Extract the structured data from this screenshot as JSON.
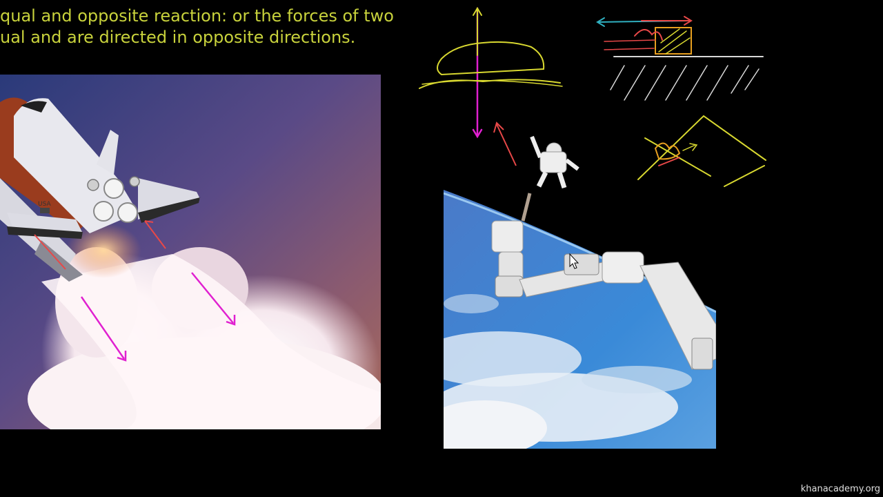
{
  "caption": {
    "line1": "qual and opposite reaction: or the forces of two",
    "line2": "ual and are directed in opposite directions."
  },
  "shuttle_photo": {
    "decal": "USA"
  },
  "watermark": "khanacademy.org",
  "colors": {
    "caption": "#c8d23c",
    "magenta": "#e020d0",
    "red": "#e84848",
    "yellow": "#d8d830",
    "teal": "#30b0c0",
    "white_chalk": "#d8d8d8"
  }
}
